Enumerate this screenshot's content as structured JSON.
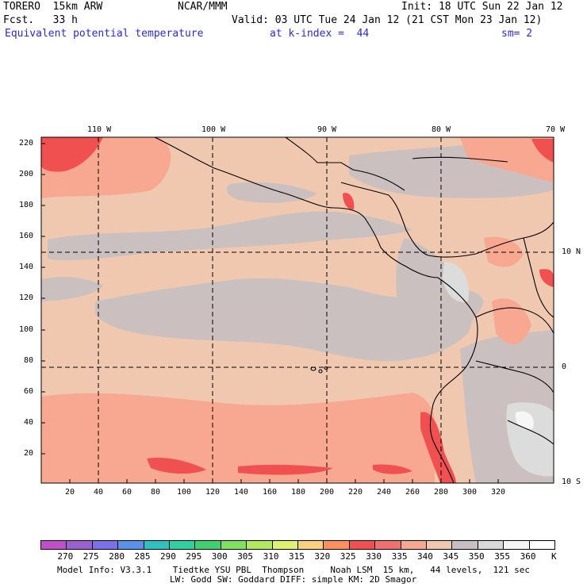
{
  "header": {
    "model": "TORERO  15km ARW",
    "org": "NCAR/MMM",
    "init": "Init: 18 UTC Sun 22 Jan 12",
    "fcst": "Fcst.   33 h",
    "valid": "Valid: 03 UTC Tue 24 Jan 12 (21 CST Mon 23 Jan 12)",
    "field": "Equivalent potential temperature",
    "level": "at k-index =  44",
    "smooth": "sm= 2"
  },
  "map": {
    "lon_labels": [
      "110 W",
      "100 W",
      "90 W",
      "80 W",
      "70 W"
    ],
    "lat_labels": [
      "10 N",
      "0",
      "10 S"
    ],
    "y_ticks": [
      "220",
      "200",
      "180",
      "160",
      "140",
      "120",
      "100",
      "80",
      "60",
      "40",
      "20"
    ],
    "x_ticks": [
      "20",
      "40",
      "60",
      "80",
      "100",
      "120",
      "140",
      "160",
      "180",
      "200",
      "220",
      "240",
      "260",
      "280",
      "300",
      "320"
    ]
  },
  "colorbar": {
    "unit": "K",
    "labels": [
      "270",
      "275",
      "280",
      "285",
      "290",
      "295",
      "300",
      "305",
      "310",
      "315",
      "320",
      "325",
      "330",
      "335",
      "340",
      "345",
      "350",
      "355",
      "360"
    ],
    "colors": [
      "#c050c8",
      "#9a60d0",
      "#7a70e8",
      "#5a90e8",
      "#30c0c0",
      "#30d0a0",
      "#40d070",
      "#80e060",
      "#b0e860",
      "#e0f070",
      "#f8d080",
      "#f89060",
      "#f05050",
      "#f07070",
      "#f8a890",
      "#f0c8b0",
      "#c8c0c0",
      "#d8d8d8",
      "#f4f4f4",
      "#ffffff"
    ]
  },
  "footer": {
    "line1": "Model Info: V3.3.1    Tiedtke YSU PBL  Thompson     Noah LSM  15 km,   44 levels,  121 sec",
    "line2": "LW: Godd SW: Goddard DIFF: simple KM: 2D Smagor"
  }
}
